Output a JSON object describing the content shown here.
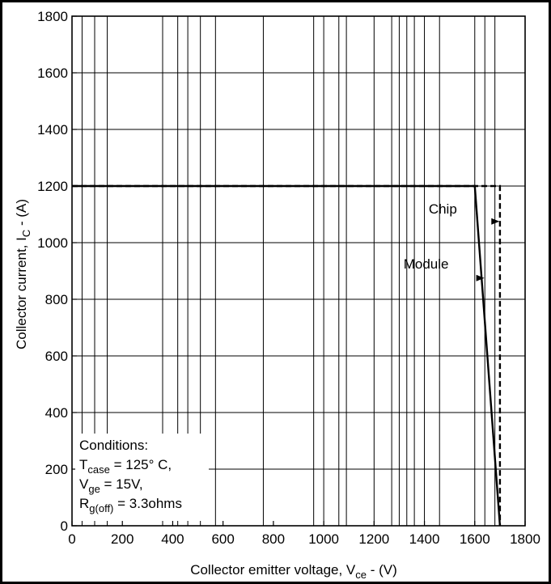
{
  "chart_data": {
    "type": "line",
    "xlabel": {
      "main": "Collector emitter voltage, V",
      "sub": "ce",
      "tail": " - (V)"
    },
    "ylabel": {
      "main": "Collector current, I",
      "sub": "C",
      "tail": " - (A)"
    },
    "xlim": [
      0,
      1800
    ],
    "ylim": [
      0,
      1800
    ],
    "x_ticks": [
      "0",
      "200",
      "400",
      "600",
      "800",
      "1000",
      "1200",
      "1400",
      "1600",
      "1800"
    ],
    "y_ticks": [
      "0",
      "200",
      "400",
      "600",
      "800",
      "1000",
      "1200",
      "1400",
      "1600",
      "1800"
    ],
    "x_grid_values": [
      40,
      90,
      140,
      360,
      420,
      460,
      510,
      570,
      760,
      960,
      1000,
      1060,
      1090,
      1200,
      1270,
      1300,
      1330,
      1360,
      1400,
      1460,
      1600,
      1640,
      1680
    ],
    "series": [
      {
        "name": "Chip",
        "style": "dashed",
        "color": "#000000",
        "points": [
          [
            0,
            1200
          ],
          [
            1700,
            1200
          ],
          [
            1700,
            0
          ]
        ]
      },
      {
        "name": "Module",
        "style": "solid",
        "color": "#000000",
        "points": [
          [
            0,
            1200
          ],
          [
            1600,
            1200
          ],
          [
            1700,
            0
          ]
        ]
      }
    ],
    "label_arrows": [
      {
        "label": "Chip",
        "text_at": [
          1730,
          1115
        ],
        "arrow_to": [
          1698,
          1075
        ]
      },
      {
        "label": "Module",
        "text_at": [
          1655,
          910
        ],
        "arrow_to": [
          1638,
          875
        ]
      }
    ],
    "conditions": {
      "title": "Conditions:",
      "lines": [
        {
          "main": "T",
          "sub": "case",
          "tail": " = 125° C,"
        },
        {
          "main": "V",
          "sub": "ge",
          "tail": " = 15V,"
        },
        {
          "main": "R",
          "sub": "g(off)",
          "tail": " = 3.3ohms"
        }
      ]
    },
    "grid": true
  }
}
